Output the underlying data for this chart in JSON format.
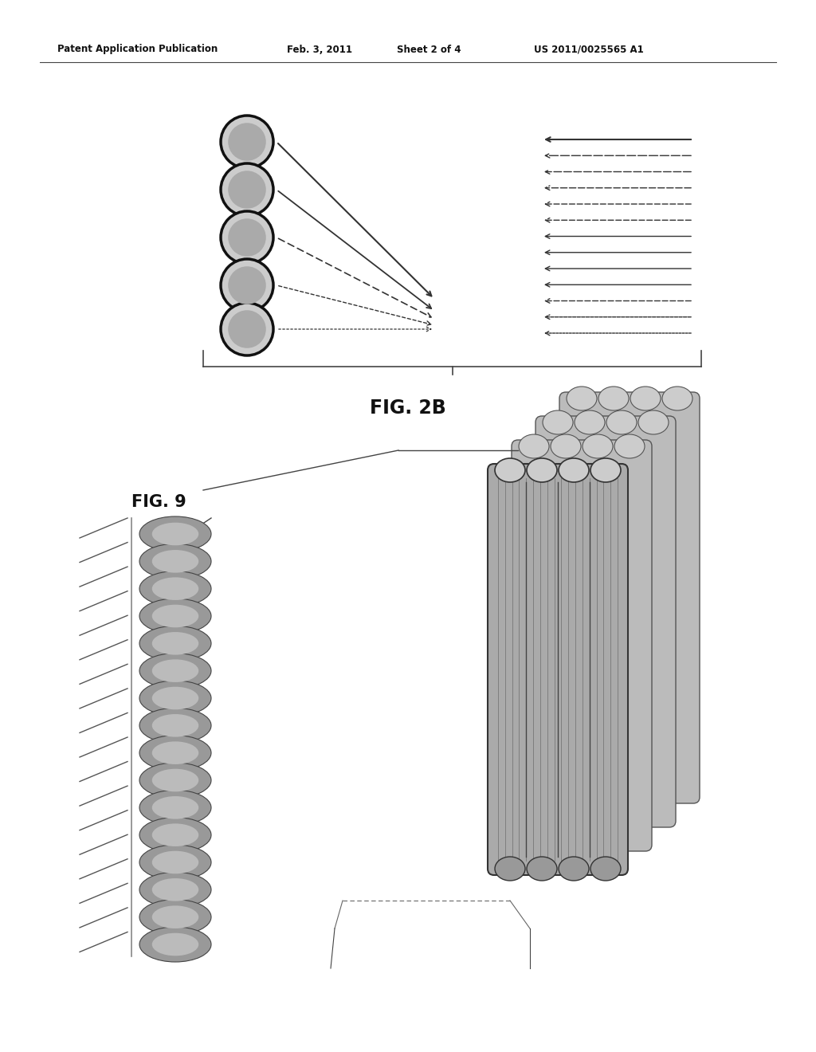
{
  "bg_color": "#ffffff",
  "header_text": "Patent Application Publication",
  "header_date": "Feb. 3, 2011",
  "header_sheet": "Sheet 2 of 4",
  "header_patent": "US 2011/0025565 A1",
  "fig2b_label": "FIG. 2B",
  "fig9_label": "FIG. 9",
  "arrow_color": "#333333",
  "line_color": "#444444"
}
